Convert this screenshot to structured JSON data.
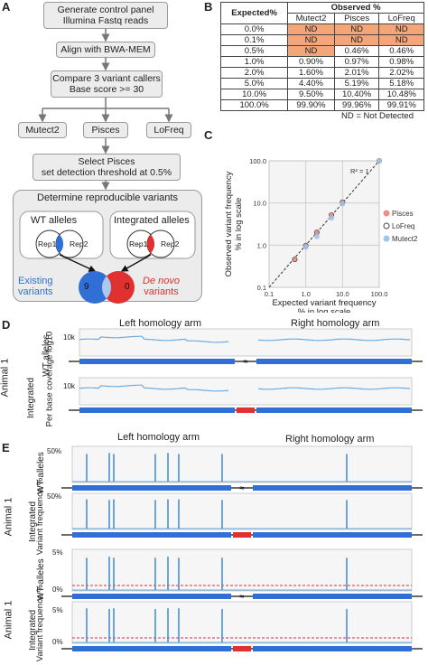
{
  "panels": {
    "a": "A",
    "b": "B",
    "c": "C",
    "d": "D",
    "e": "E"
  },
  "workflow": {
    "step1": [
      "Generate control panel",
      "Illumina Fastq reads"
    ],
    "step2": "Align with BWA-MEM",
    "step3": [
      "Compare 3 variant callers",
      "Base score >= 30"
    ],
    "callers": [
      "Mutect2",
      "Pisces",
      "LoFreq"
    ],
    "step4": [
      "Select Pisces",
      "set detection threshold at 0.5%"
    ],
    "step5": "Determine reproducible variants",
    "wt_alleles": "WT alleles",
    "integrated_alleles": "Integrated alleles",
    "rep1": "Rep1",
    "rep2": "Rep2",
    "existing": [
      "Existing",
      "variants"
    ],
    "denovo": [
      "De novo",
      "variants"
    ],
    "count_existing": "9",
    "count_denovo": "0",
    "colors": {
      "blue": "#2f6fd6",
      "red": "#e03030",
      "lightblue": "#a9c9f0"
    }
  },
  "table": {
    "header_expected": "Expected%",
    "header_observed": "Observed %",
    "columns": [
      "Mutect2",
      "Pisces",
      "LoFreq"
    ],
    "rows": [
      [
        "0.0%",
        "ND",
        "ND",
        "ND"
      ],
      [
        "0.1%",
        "ND",
        "ND",
        "ND"
      ],
      [
        "0.5%",
        "ND",
        "0.46%",
        "0.46%"
      ],
      [
        "1.0%",
        "0.90%",
        "0.97%",
        "0.98%"
      ],
      [
        "2.0%",
        "1.60%",
        "2.01%",
        "2.02%"
      ],
      [
        "5.0%",
        "4.40%",
        "5.19%",
        "5.18%"
      ],
      [
        "10.0%",
        "9.50%",
        "10.40%",
        "10.48%"
      ],
      [
        "100.0%",
        "99.90%",
        "99.96%",
        "99.91%"
      ]
    ],
    "footnote": "ND = Not Detected"
  },
  "chart_data": {
    "type": "scatter",
    "xlabel": "Expected variant frequency % in log scale",
    "ylabel": "Observed variant frequency % in log scale",
    "x_ticks": [
      "0.1",
      "1.0",
      "10.0",
      "100.0"
    ],
    "y_ticks": [
      "0.1",
      "1.0",
      "10.0",
      "100.0"
    ],
    "xlim": [
      0.1,
      100
    ],
    "ylim": [
      0.1,
      100
    ],
    "scale": "log",
    "annotation": "R² = 1",
    "legend_position": "right",
    "series": [
      {
        "name": "Pisces",
        "color": "#f28b8b",
        "x": [
          0.5,
          1,
          2,
          5,
          10,
          100
        ],
        "y": [
          0.46,
          0.97,
          2.01,
          5.19,
          10.4,
          99.96
        ]
      },
      {
        "name": "LoFreq",
        "color": "#444444",
        "x": [
          0.5,
          1,
          2,
          5,
          10,
          100
        ],
        "y": [
          0.46,
          0.98,
          2.02,
          5.18,
          10.48,
          99.91
        ]
      },
      {
        "name": "Mutect2",
        "color": "#9ec4ea",
        "x": [
          1,
          2,
          5,
          10,
          100
        ],
        "y": [
          0.9,
          1.6,
          4.4,
          9.5,
          99.9
        ]
      }
    ]
  },
  "coverage": {
    "left_arm": "Left homology arm",
    "right_arm": "Right homology arm",
    "ylabel": "Per base coverage log10",
    "animal": "Animal 1",
    "wt": "WT alleles",
    "integrated": "Integrated",
    "tick": "10k"
  },
  "variants": {
    "left_arm": "Left homology arm",
    "right_arm": "Right homology arm",
    "animal": "Animal 1",
    "ylabel": "Variant frequence %",
    "wt": "WT alleles",
    "integrated": "Integrated",
    "tick_top_50": "50%",
    "tick_zero": "0%",
    "tick_top_5": "5%"
  }
}
